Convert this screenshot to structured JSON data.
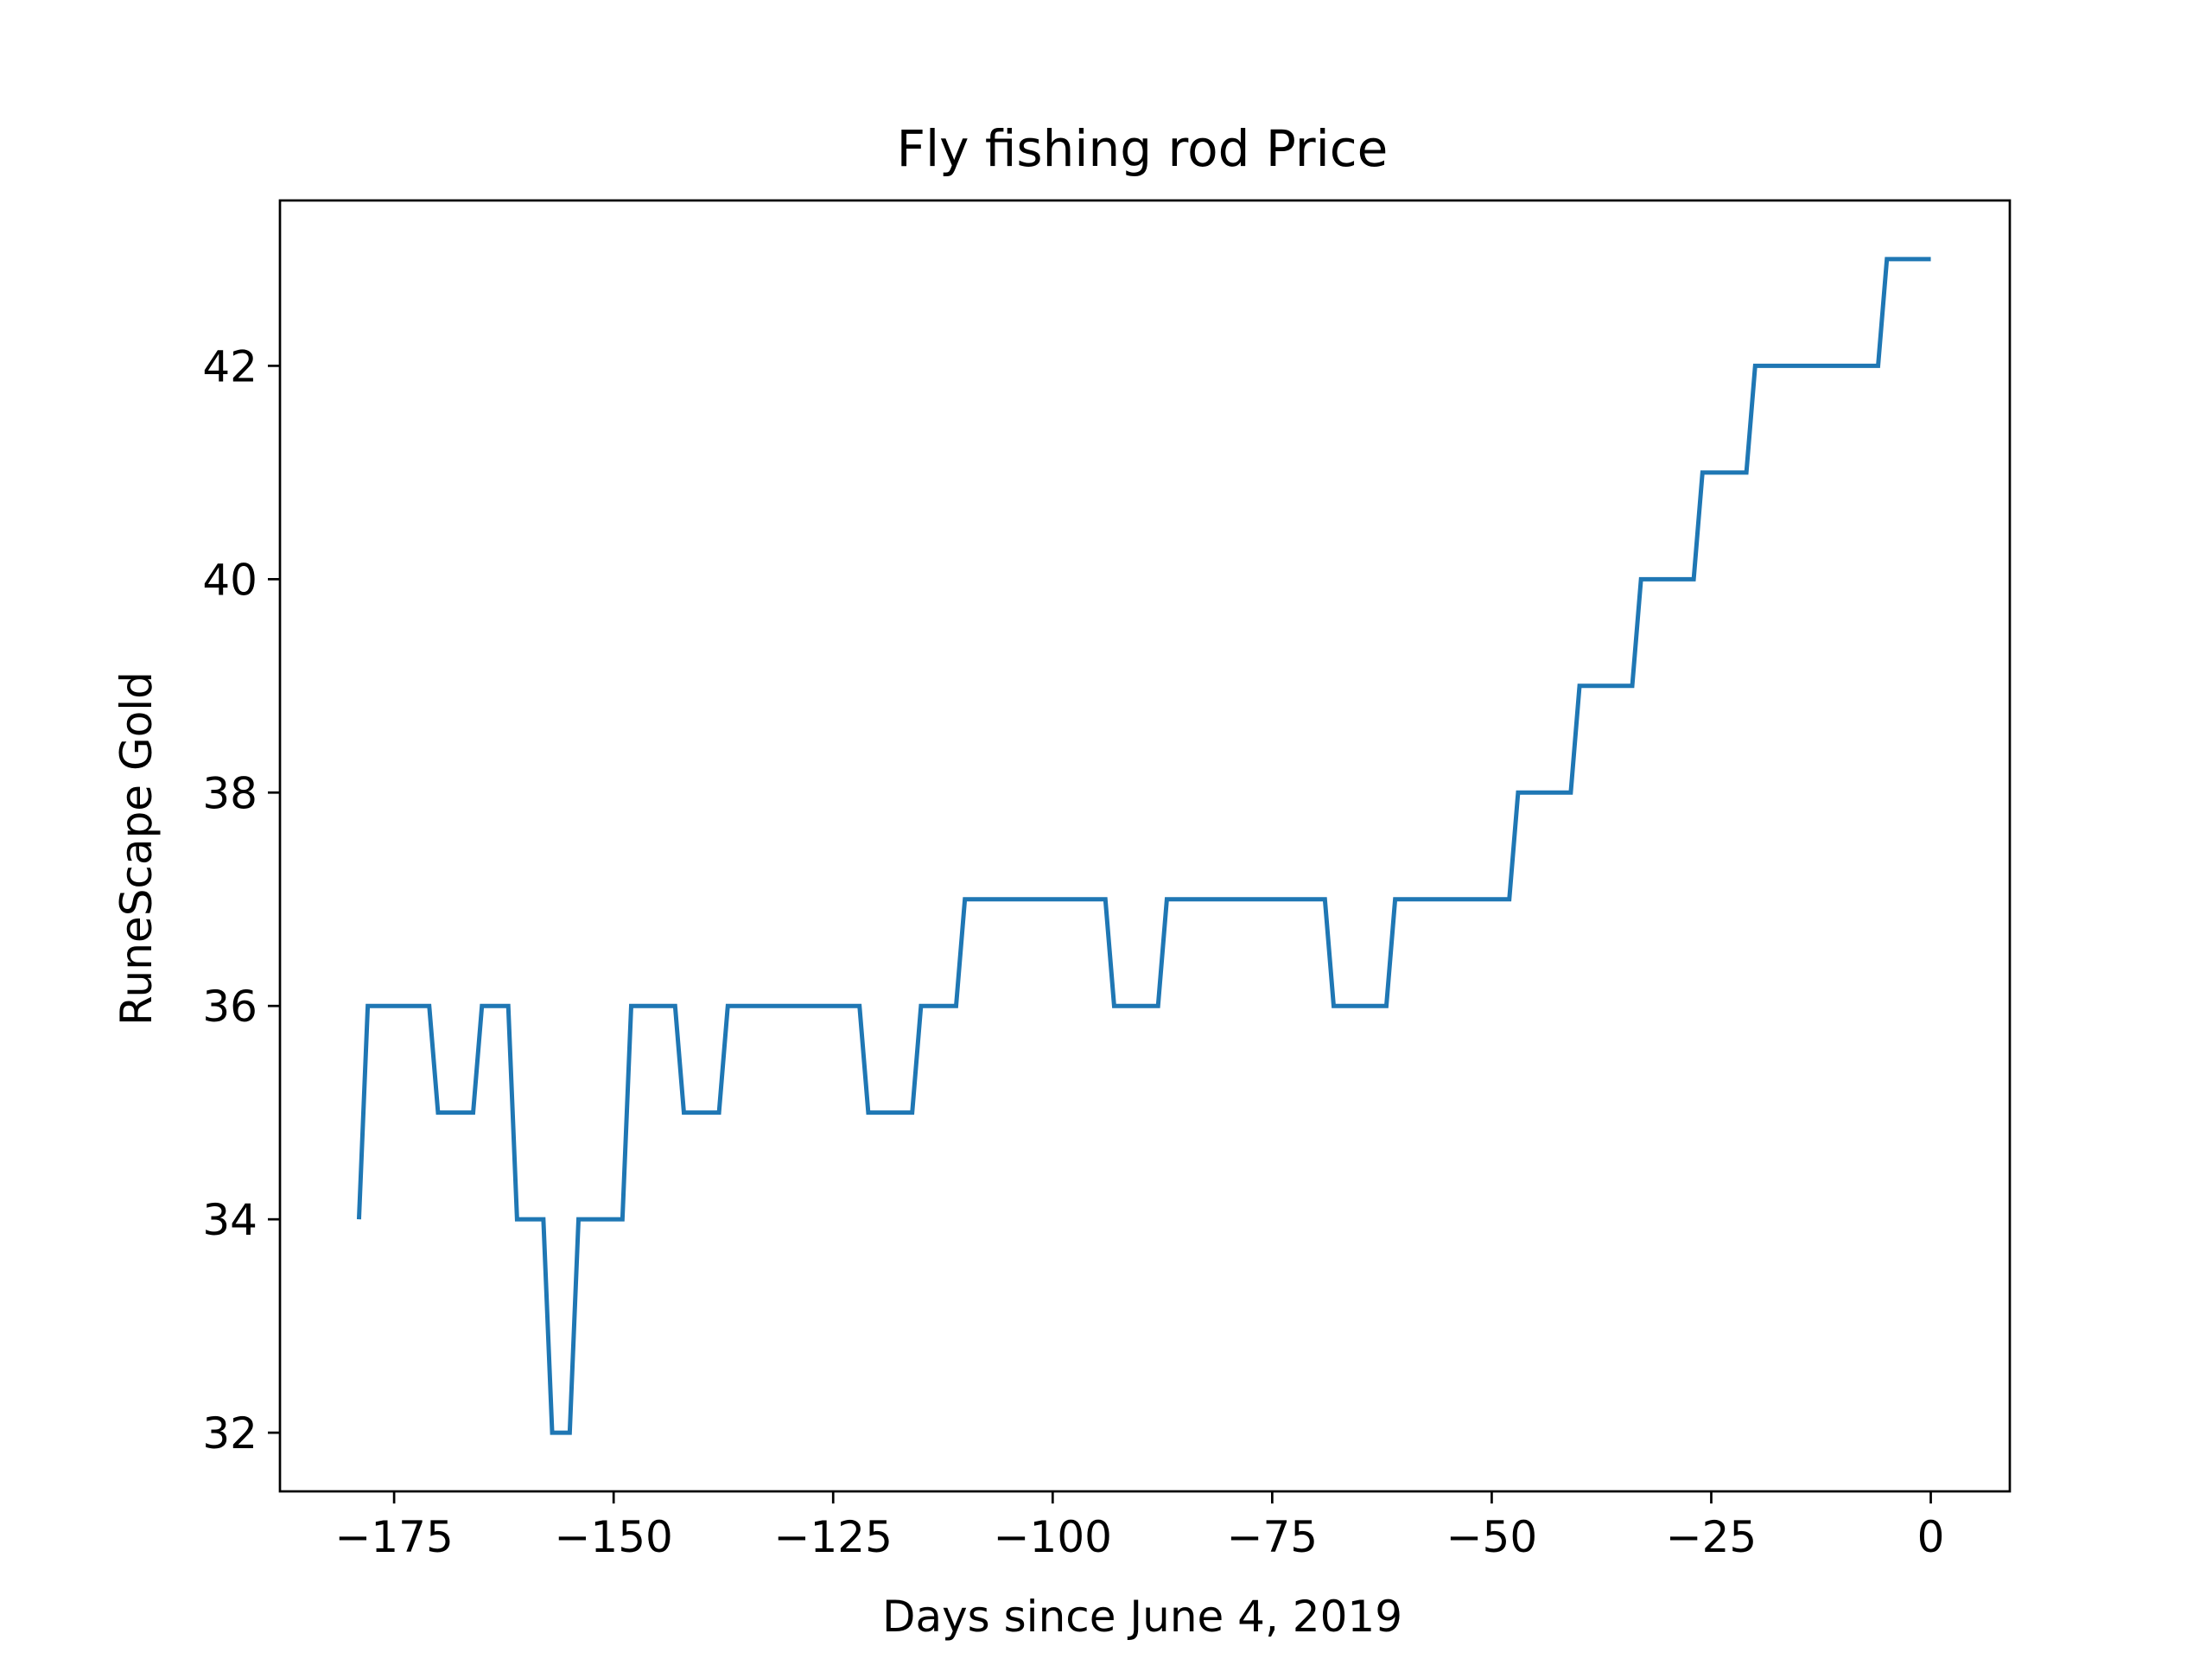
{
  "chart_data": {
    "type": "line",
    "title": "Fly fishing rod Price",
    "xlabel": "Days since June 4, 2019",
    "ylabel": "RuneScape Gold",
    "xlim": [
      -188,
      9
    ],
    "ylim": [
      31.45,
      43.55
    ],
    "x_ticks": [
      -175,
      -150,
      -125,
      -100,
      -75,
      -50,
      -25,
      0
    ],
    "x_tick_labels": [
      "−175",
      "−150",
      "−125",
      "−100",
      "−75",
      "−50",
      "−25",
      "0"
    ],
    "y_ticks": [
      32,
      34,
      36,
      38,
      40,
      42
    ],
    "y_tick_labels": [
      "32",
      "34",
      "36",
      "38",
      "40",
      "42"
    ],
    "grid": false,
    "series": [
      {
        "color": "#1f77b4",
        "x": [
          -179,
          -178,
          -171,
          -170,
          -166,
          -165,
          -162,
          -161,
          -158,
          -157,
          -155,
          -154,
          -149,
          -148,
          -143,
          -142,
          -138,
          -137,
          -122,
          -121,
          -116,
          -115,
          -111,
          -110,
          -94,
          -93,
          -88,
          -87,
          -69,
          -68,
          -62,
          -61,
          -48,
          -47,
          -41,
          -40,
          -34,
          -33,
          -27,
          -26,
          -21,
          -20,
          -6,
          -5,
          0
        ],
        "y": [
          34,
          36,
          36,
          35,
          35,
          36,
          36,
          34,
          34,
          32,
          32,
          34,
          34,
          36,
          36,
          35,
          35,
          36,
          36,
          35,
          35,
          36,
          36,
          37,
          37,
          36,
          36,
          37,
          37,
          36,
          36,
          37,
          37,
          38,
          38,
          39,
          39,
          40,
          40,
          41,
          41,
          42,
          42,
          43,
          43
        ]
      }
    ]
  }
}
